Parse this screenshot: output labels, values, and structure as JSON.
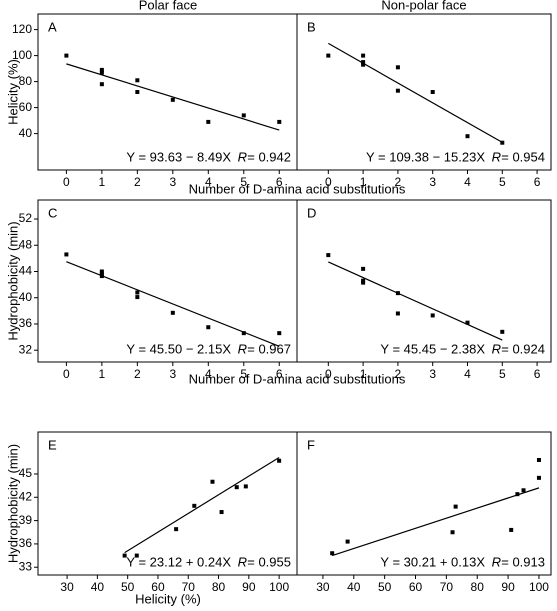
{
  "column_titles": [
    "Polar face",
    "Non-polar face"
  ],
  "rows": [
    {
      "ylabel": "Helicity (%)",
      "xlabel": "Number of D-amina acid substitutions"
    },
    {
      "ylabel": "Hydrophobicity (min)",
      "xlabel": "Number of D-amina acid substitutions"
    },
    {
      "ylabel": "Hydrophobicity (min)",
      "xlabel": "Helicity (%)"
    }
  ],
  "chart_data": [
    {
      "type": "scatter",
      "label": "A",
      "color": "#000000",
      "x": [
        0,
        1,
        1,
        1,
        2,
        2,
        3,
        4,
        5,
        6
      ],
      "y": [
        100,
        89,
        87,
        78,
        81,
        72,
        66,
        49,
        54,
        49
      ],
      "xlim": [
        -0.8,
        6.5
      ],
      "ylim": [
        12,
        132
      ],
      "xticks": [
        0,
        1,
        2,
        3,
        4,
        5,
        6
      ],
      "yticks": [
        40,
        60,
        80,
        100,
        120
      ],
      "fit": {
        "x": [
          0,
          6
        ],
        "y": [
          93.63,
          42.69
        ]
      },
      "equation": "Y = 93.63 − 8.49X",
      "r_symbol": "R",
      "r_value": "= 0.942"
    },
    {
      "type": "scatter",
      "label": "B",
      "color": "#000000",
      "x": [
        0,
        1,
        1,
        1,
        2,
        2,
        3,
        4,
        5
      ],
      "y": [
        100,
        100,
        95,
        93,
        91,
        73,
        72,
        38,
        33
      ],
      "xlim": [
        -0.9,
        6.4
      ],
      "ylim": [
        12,
        132
      ],
      "xticks": [
        0,
        1,
        2,
        3,
        4,
        5,
        6
      ],
      "fit": {
        "x": [
          0,
          5
        ],
        "y": [
          109.38,
          33.23
        ]
      },
      "equation": "Y = 109.38 − 15.23X",
      "r_symbol": "R",
      "r_value": "= 0.954"
    },
    {
      "type": "scatter",
      "label": "C",
      "color": "#000000",
      "x": [
        0,
        1,
        1,
        1,
        2,
        2,
        3,
        4,
        5,
        6
      ],
      "y": [
        46.6,
        44.0,
        43.7,
        43.3,
        40.8,
        40.1,
        37.7,
        35.5,
        34.6,
        34.6
      ],
      "xlim": [
        -0.8,
        6.5
      ],
      "ylim": [
        30.2,
        54.9
      ],
      "xticks": [
        0,
        1,
        2,
        3,
        4,
        5,
        6
      ],
      "yticks": [
        32,
        36,
        40,
        44,
        48,
        52
      ],
      "fit": {
        "x": [
          0,
          6
        ],
        "y": [
          45.5,
          32.6
        ]
      },
      "equation": "Y = 45.50 − 2.15X",
      "r_symbol": "R",
      "r_value": "= 0.967"
    },
    {
      "type": "scatter",
      "label": "D",
      "color": "#000000",
      "x": [
        0,
        1,
        1,
        1,
        2,
        2,
        3,
        4,
        5
      ],
      "y": [
        46.5,
        44.4,
        42.6,
        42.3,
        40.7,
        37.6,
        37.3,
        36.2,
        34.8
      ],
      "xlim": [
        -0.9,
        6.4
      ],
      "ylim": [
        30.2,
        54.9
      ],
      "xticks": [
        0,
        1,
        2,
        3,
        4,
        5,
        6
      ],
      "fit": {
        "x": [
          0,
          5
        ],
        "y": [
          45.45,
          33.55
        ]
      },
      "equation": "Y = 45.45 − 2.38X",
      "r_symbol": "R",
      "r_value": "= 0.924"
    },
    {
      "type": "scatter",
      "label": "E",
      "color": "#000000",
      "x": [
        49,
        53,
        66,
        72,
        78,
        81,
        86,
        89,
        100
      ],
      "y": [
        34.5,
        34.5,
        37.9,
        40.9,
        44.0,
        40.1,
        43.3,
        43.4,
        46.7
      ],
      "xlim": [
        20.4,
        105.9
      ],
      "ylim": [
        32,
        50.4
      ],
      "xticks": [
        30,
        40,
        50,
        60,
        70,
        80,
        90,
        100
      ],
      "yticks": [
        33,
        36,
        39,
        42,
        45
      ],
      "fit": {
        "x": [
          49,
          100
        ],
        "y": [
          34.88,
          47.12
        ]
      },
      "equation": "Y = 23.12 + 0.24X",
      "r_symbol": "R",
      "r_value": "= 0.955"
    },
    {
      "type": "scatter",
      "label": "F",
      "color": "#000000",
      "x": [
        33,
        38,
        72,
        73,
        91,
        93,
        95,
        100,
        100
      ],
      "y": [
        34.8,
        36.3,
        37.5,
        40.8,
        37.8,
        42.4,
        42.9,
        44.5,
        46.8
      ],
      "xlim": [
        21.6,
        103.9
      ],
      "ylim": [
        32,
        50.4
      ],
      "xticks": [
        30,
        40,
        50,
        60,
        70,
        80,
        90,
        100
      ],
      "fit": {
        "x": [
          33,
          100
        ],
        "y": [
          34.5,
          43.21
        ]
      },
      "equation": "Y = 30.21 + 0.13X",
      "r_symbol": "R",
      "r_value": "= 0.913"
    }
  ]
}
